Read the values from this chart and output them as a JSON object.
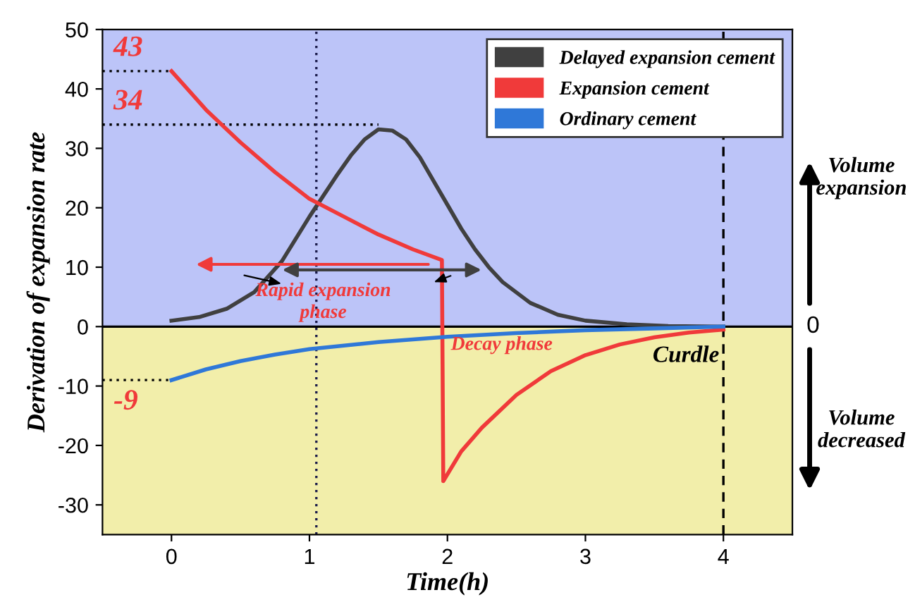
{
  "chart_data": {
    "type": "line",
    "xlabel": "Time(h)",
    "ylabel": "Derivation of expansion rate",
    "xlim": [
      -0.5,
      4.5
    ],
    "xticks": [
      0,
      1,
      2,
      3,
      4
    ],
    "ylim": [
      -35,
      50
    ],
    "yticks": [
      -30,
      -20,
      -10,
      0,
      10,
      20,
      30,
      40,
      50
    ],
    "grid": false,
    "legend": "top right",
    "marker": "none",
    "line_style": "solid",
    "series": [
      {
        "name": "Delayed expansion cement",
        "color": "#404040",
        "x": [
          0,
          0.2,
          0.4,
          0.6,
          0.8,
          1.0,
          1.1,
          1.2,
          1.3,
          1.4,
          1.5,
          1.6,
          1.7,
          1.8,
          1.9,
          2.0,
          2.1,
          2.2,
          2.3,
          2.4,
          2.6,
          2.8,
          3.0,
          3.3,
          3.6,
          4.0
        ],
        "values": [
          1.0,
          1.6,
          3,
          5.8,
          11,
          18.5,
          22,
          25.5,
          28.8,
          31.5,
          33.2,
          33,
          31.5,
          28.5,
          24.5,
          20.5,
          16.5,
          13,
          10,
          7.5,
          4,
          2,
          1,
          0.4,
          0.1,
          0
        ]
      },
      {
        "name": "Expansion cement",
        "color": "#f03a3a",
        "x": [
          0,
          0.25,
          0.5,
          0.75,
          1.0,
          1.25,
          1.5,
          1.75,
          1.96,
          1.97,
          2.1,
          2.25,
          2.5,
          2.75,
          3.0,
          3.25,
          3.5,
          3.75,
          4.0
        ],
        "values": [
          43,
          36.5,
          31,
          26,
          21.5,
          18.5,
          15.5,
          13,
          11.2,
          -26,
          -21,
          -17,
          -11.5,
          -7.5,
          -4.8,
          -3,
          -1.8,
          -1,
          -0.5
        ]
      },
      {
        "name": "Ordinary cement",
        "color": "#2f78d8",
        "x": [
          0,
          0.25,
          0.5,
          0.75,
          1.0,
          1.5,
          2.0,
          2.5,
          3.0,
          3.5,
          4.0
        ],
        "values": [
          -9,
          -7.2,
          -5.8,
          -4.7,
          -3.8,
          -2.6,
          -1.7,
          -1.1,
          -0.6,
          -0.3,
          0
        ]
      }
    ],
    "bands": [
      {
        "axis": "y",
        "from": 0,
        "to": 50,
        "label": "Volume expansion",
        "color": "#bcc4f8"
      },
      {
        "axis": "y",
        "from": -35,
        "to": 0,
        "label": "Volume decreased",
        "color": "#f2eeaa"
      }
    ],
    "ref_lines": [
      {
        "axis": "y",
        "value": 0,
        "label": "0",
        "color": "#000000",
        "line_style": "solid"
      },
      {
        "axis": "y",
        "value": 43,
        "label": "43",
        "color": "#000000",
        "line_style": "dotted"
      },
      {
        "axis": "y",
        "value": 34,
        "label": "34",
        "color": "#000000",
        "line_style": "dotted"
      },
      {
        "axis": "y",
        "value": -9,
        "label": "-9",
        "color": "#000000",
        "line_style": "dotted"
      },
      {
        "axis": "x",
        "value": 1.05,
        "label": null,
        "color": "#1a1a4a",
        "line_style": "dotted"
      },
      {
        "axis": "x",
        "value": 4,
        "label": "Curdle",
        "color": "#000000",
        "line_style": "dashed"
      }
    ],
    "annotations": [
      "Rapid expansion\nphase",
      "Decay phase"
    ]
  }
}
